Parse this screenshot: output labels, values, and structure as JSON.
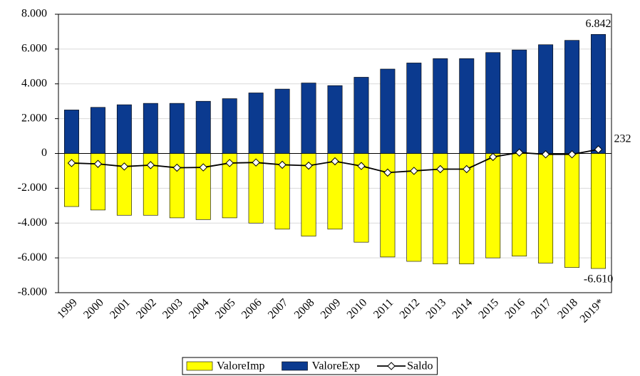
{
  "chart_data": {
    "type": "bar",
    "categories": [
      "1999",
      "2000",
      "2001",
      "2002",
      "2003",
      "2004",
      "2005",
      "2006",
      "2007",
      "2008",
      "2009",
      "2010",
      "2011",
      "2012",
      "2013",
      "2014",
      "2015",
      "2016",
      "2017",
      "2018",
      "2019*"
    ],
    "series": [
      {
        "name": "ValoreImp",
        "type": "bar",
        "color": "#ffff00",
        "values": [
          -3050,
          -3250,
          -3550,
          -3550,
          -3700,
          -3800,
          -3700,
          -4000,
          -4350,
          -4750,
          -4350,
          -5100,
          -5950,
          -6200,
          -6350,
          -6350,
          -6000,
          -5900,
          -6300,
          -6550,
          -6610
        ],
        "value_labels": [
          null,
          null,
          null,
          null,
          null,
          null,
          null,
          null,
          null,
          null,
          null,
          null,
          null,
          null,
          null,
          null,
          null,
          null,
          null,
          null,
          "-6.610"
        ]
      },
      {
        "name": "ValoreExp",
        "type": "bar",
        "color": "#0b3a8f",
        "values": [
          2500,
          2650,
          2800,
          2880,
          2880,
          3000,
          3150,
          3480,
          3700,
          4050,
          3900,
          4380,
          4850,
          5200,
          5450,
          5450,
          5800,
          5950,
          6250,
          6500,
          6842
        ],
        "value_labels": [
          null,
          null,
          null,
          null,
          null,
          null,
          null,
          null,
          null,
          null,
          null,
          null,
          null,
          null,
          null,
          null,
          null,
          null,
          null,
          null,
          "6.842"
        ]
      },
      {
        "name": "Saldo",
        "type": "line",
        "color": "#000000",
        "values": [
          -550,
          -600,
          -750,
          -670,
          -820,
          -800,
          -550,
          -520,
          -650,
          -700,
          -450,
          -720,
          -1100,
          -1000,
          -900,
          -900,
          -200,
          50,
          -50,
          -50,
          232
        ],
        "value_labels": [
          null,
          null,
          null,
          null,
          null,
          null,
          null,
          null,
          null,
          null,
          null,
          null,
          null,
          null,
          null,
          null,
          null,
          null,
          null,
          null,
          "232"
        ]
      }
    ],
    "ylim": [
      -8000,
      8000
    ],
    "yticks": [
      {
        "value": -8000,
        "label": "-8.000"
      },
      {
        "value": -6000,
        "label": "-6.000"
      },
      {
        "value": -4000,
        "label": "-4.000"
      },
      {
        "value": -2000,
        "label": "-2.000"
      },
      0,
      {
        "value": 2000,
        "label": "2.000"
      },
      {
        "value": 4000,
        "label": "4.000"
      },
      {
        "value": 6000,
        "label": "6.000"
      },
      {
        "value": 8000,
        "label": "8.000"
      }
    ],
    "grid": true,
    "legend": "bottom"
  }
}
